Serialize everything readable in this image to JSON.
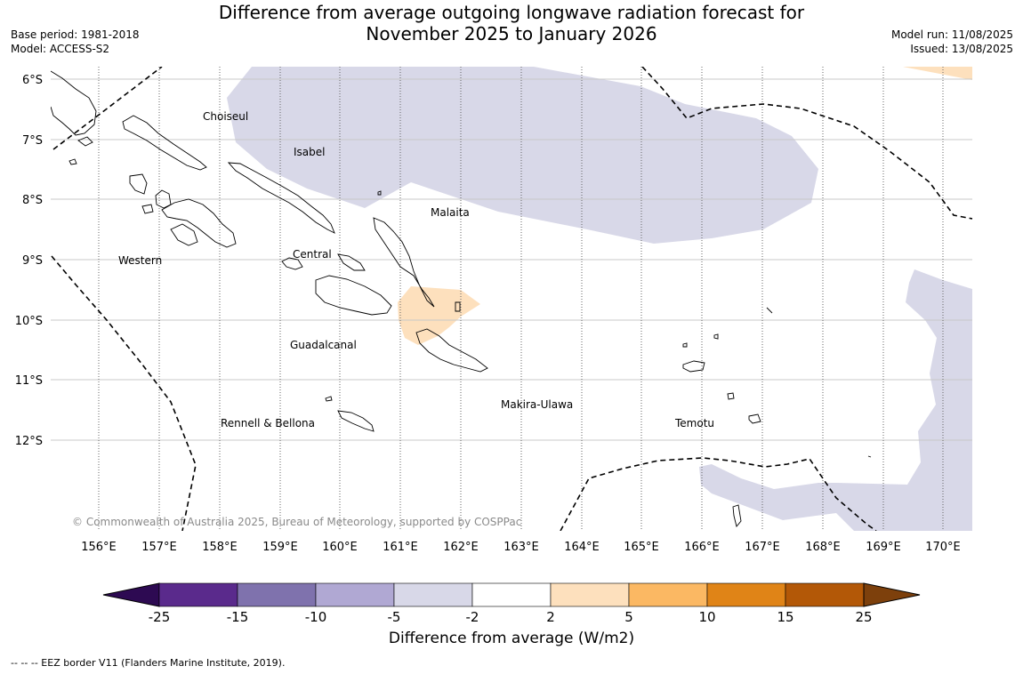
{
  "title_line1": "Difference from average outgoing longwave radiation forecast for",
  "title_line2": "November 2025 to January 2026",
  "base_period": "Base period: 1981-2018",
  "model": "Model: ACCESS-S2",
  "model_run": "Model run: 11/08/2025",
  "issued": "Issued: 13/08/2025",
  "map": {
    "lon_ticks": [
      "156°E",
      "157°E",
      "158°E",
      "159°E",
      "160°E",
      "161°E",
      "162°E",
      "163°E",
      "164°E",
      "165°E",
      "166°E",
      "167°E",
      "168°E",
      "169°E",
      "170°E"
    ],
    "lat_ticks": [
      "6°S",
      "7°S",
      "8°S",
      "9°S",
      "10°S",
      "11°S",
      "12°S"
    ],
    "regions": [
      "Choiseul",
      "Isabel",
      "Malaita",
      "Western",
      "Central",
      "Guadalcanal",
      "Makira-Ulawa",
      "Rennell & Bellona",
      "Temotu"
    ],
    "copyright": "© Commonwealth of Australia 2025, Bureau of Meteorology, supported by COSPPac",
    "colors": {
      "negative_light": "#d8d8e8",
      "positive_light": "#fde0bd",
      "coastline": "#000000",
      "eez_border": "#000000",
      "lon_gridline": "#666666",
      "lat_gridline": "#c8c8c8"
    }
  },
  "colorbar": {
    "tick_labels": [
      "-25",
      "-15",
      "-10",
      "-5",
      "-2",
      "2",
      "5",
      "10",
      "15",
      "25"
    ],
    "colors": [
      "#5a2a8c",
      "#7f72ad",
      "#b0a8d3",
      "#d8d8e8",
      "#ffffff",
      "#fde0bd",
      "#fbb863",
      "#e08417",
      "#b35807"
    ],
    "extend_low": "#2d0a52",
    "extend_high": "#7d400c",
    "label": "Difference from average (W/m2)"
  },
  "footnote": "--  --  -- EEZ border V11 (Flanders Marine Institute, 2019)."
}
